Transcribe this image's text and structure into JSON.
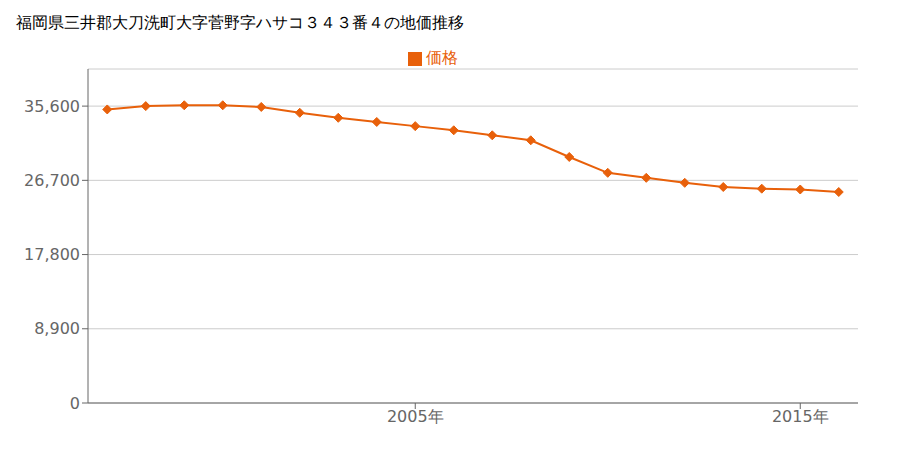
{
  "chart_data": {
    "type": "line",
    "title": "福岡県三井郡大刀洗町大字菅野字ハサコ３４３番４の地価推移",
    "x": [
      1997,
      1998,
      1999,
      2000,
      2001,
      2002,
      2003,
      2004,
      2005,
      2006,
      2007,
      2008,
      2009,
      2010,
      2011,
      2012,
      2013,
      2014,
      2015,
      2016
    ],
    "series": [
      {
        "name": "価格",
        "color": "#e8600a",
        "marker": "diamond",
        "values": [
          35200,
          35600,
          35700,
          35700,
          35500,
          34800,
          34200,
          33700,
          33200,
          32700,
          32100,
          31500,
          29500,
          27600,
          27000,
          26400,
          25900,
          25700,
          25600,
          25300
        ]
      }
    ],
    "xlim": [
      1996.5,
      2016.5
    ],
    "xticks": [
      {
        "value": 2005,
        "label": "2005年"
      },
      {
        "value": 2015,
        "label": "2015年"
      }
    ],
    "ylim": [
      0,
      40050
    ],
    "yticks": [
      0,
      {
        "value": 8900,
        "label": "8,900"
      },
      {
        "value": 17800,
        "label": "17,800"
      },
      {
        "value": 26700,
        "label": "26,700"
      },
      {
        "value": 35600,
        "label": "35,600"
      }
    ],
    "grid": "y",
    "legend": "top"
  }
}
